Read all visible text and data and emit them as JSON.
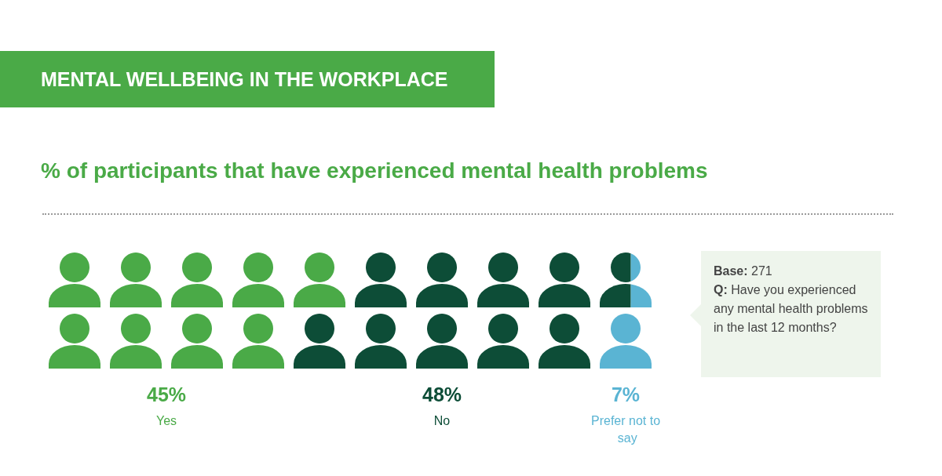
{
  "chart_data": {
    "type": "other",
    "title": "MENTAL WELLBEING IN THE WORKPLACE",
    "subtitle": "% of participants that have experienced mental health problems",
    "categories": [
      "Yes",
      "No",
      "Prefer not to say"
    ],
    "values": [
      45,
      48,
      7
    ],
    "colors": [
      "#4aaa47",
      "#0d4d37",
      "#5ab4d3"
    ],
    "value_labels": [
      "45%",
      "48%",
      "7%"
    ],
    "annotations": [
      "Base: 271",
      "Q: Have you experienced any mental health problems in the last 12 months?"
    ]
  }
}
